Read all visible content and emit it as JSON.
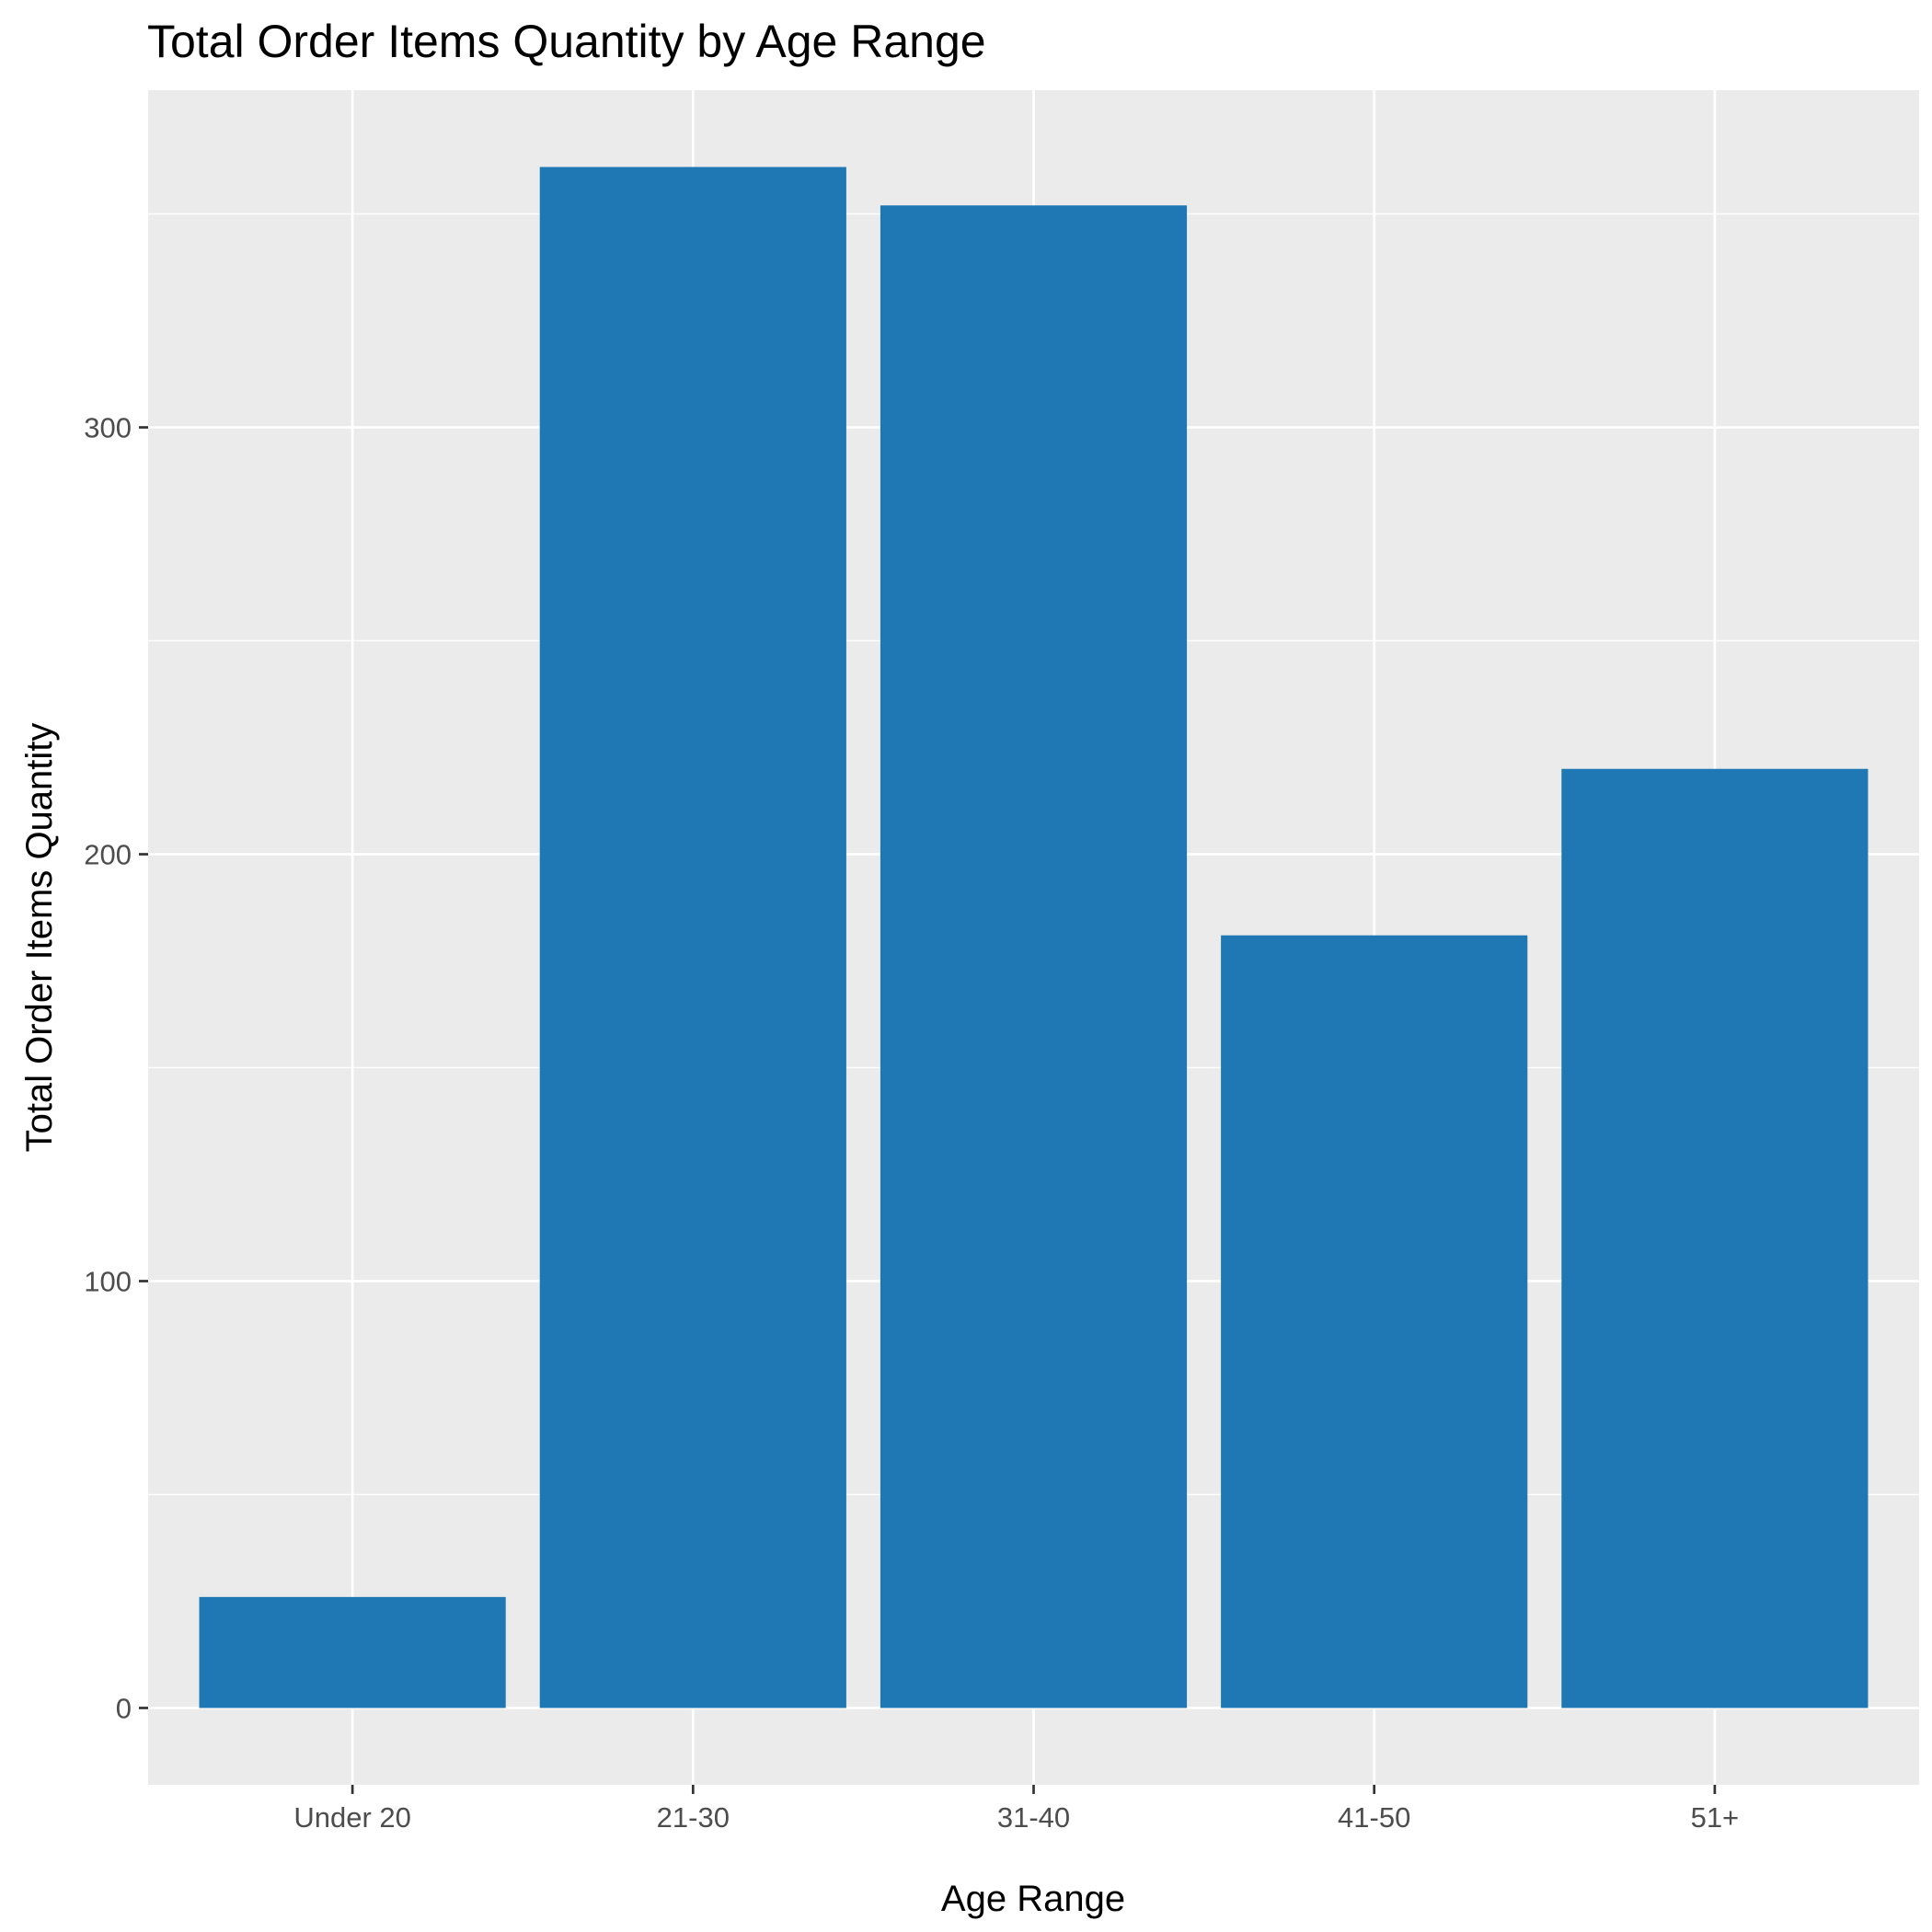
{
  "chart_data": {
    "type": "bar",
    "title": "Total Order Items Quantity by Age Range",
    "xlabel": "Age Range",
    "ylabel": "Total Order Items Quantity",
    "categories": [
      "Under 20",
      "21-30",
      "31-40",
      "41-50",
      "51+"
    ],
    "values": [
      26,
      361,
      352,
      181,
      220
    ],
    "ylim": [
      -18,
      379
    ],
    "y_ticks": [
      0,
      100,
      200,
      300
    ],
    "grid": true,
    "legend": "none",
    "colors": {
      "bar": "#1f77b4",
      "panel": "#ebebeb",
      "grid": "#ffffff",
      "tick_text": "#4d4d4d"
    }
  }
}
